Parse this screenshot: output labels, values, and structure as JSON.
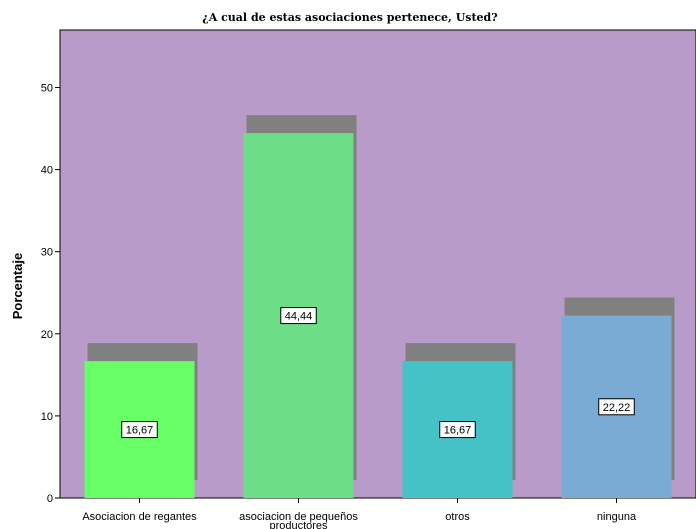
{
  "chart_data": {
    "type": "bar",
    "title": "¿A cual de estas asociaciones pertenece, Usted?",
    "ylabel": "Porcentaje",
    "xlabel": "",
    "ylim": [
      0,
      57
    ],
    "yticks": [
      0,
      10,
      20,
      30,
      40,
      50
    ],
    "grid": false,
    "legend": "none",
    "categories": [
      [
        "Asociacion de regantes"
      ],
      [
        "asociacion de pequeños",
        "productores"
      ],
      [
        "otros"
      ],
      [
        "ninguna"
      ]
    ],
    "values": [
      16.67,
      44.44,
      16.67,
      22.22
    ],
    "data_labels": [
      "16,67",
      "44,44",
      "16,67",
      "22,22"
    ],
    "colors": [
      "#66ff66",
      "#6ddd88",
      "#44c2c6",
      "#7aabd5"
    ],
    "plot_background": "#b89bc8",
    "shadow_color": "#808080"
  }
}
